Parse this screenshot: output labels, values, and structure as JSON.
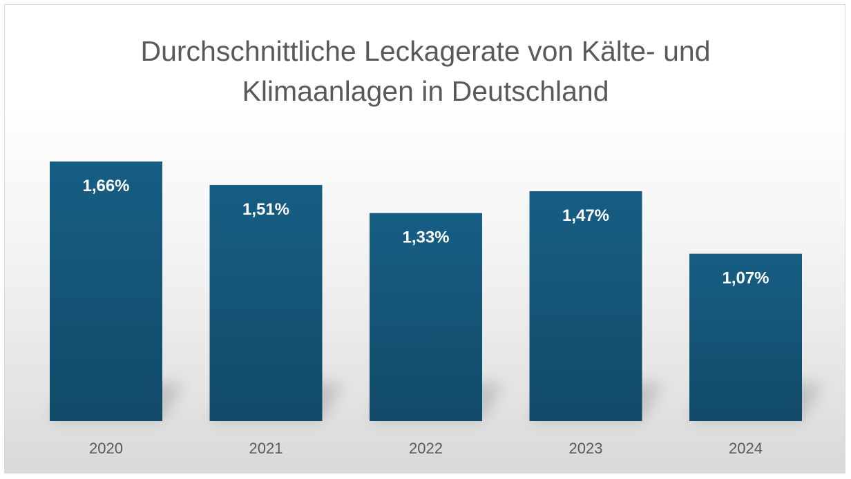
{
  "chart_data": {
    "type": "bar",
    "title": "Durchschnittliche Leckagerate von Kälte- und Klimaanlagen in Deutschland",
    "xlabel": "",
    "ylabel": "",
    "categories": [
      "2020",
      "2021",
      "2022",
      "2023",
      "2024"
    ],
    "values": [
      1.66,
      1.51,
      1.33,
      1.47,
      1.07
    ],
    "data_labels": [
      "1,66%",
      "1,51%",
      "1,33%",
      "1,47%",
      "1,07%"
    ],
    "ylim": [
      0,
      1.66
    ],
    "grid": false,
    "legend": "none",
    "bar_color": "#165a7e",
    "bar_color_dark": "#124c6a"
  }
}
